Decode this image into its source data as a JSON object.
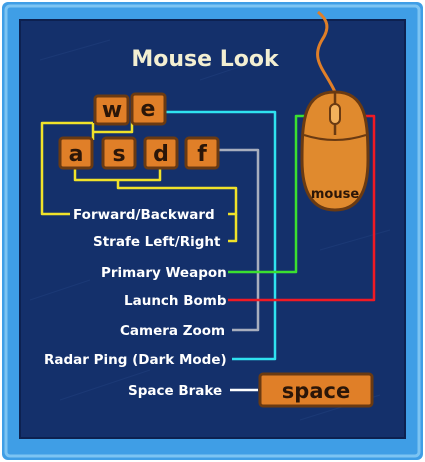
{
  "title": "Mouse Look",
  "colors": {
    "frame": "#3f9ee6",
    "board": "#14306b",
    "key_fill": "#e07f28",
    "key_border": "#6a3a12",
    "key_text": "#2b1608",
    "yellow_line": "#f0e22a",
    "cyan_line": "#2fe2f0",
    "gray_line": "#a8aebe",
    "green_line": "#3be030",
    "red_line": "#f01a24",
    "white_line": "#ffffff"
  },
  "keys": {
    "w": "w",
    "e": "e",
    "a": "a",
    "s": "s",
    "d": "d",
    "f": "f"
  },
  "mouse": {
    "label": "mouse",
    "icon": "mouse-icon"
  },
  "space_key": {
    "label": "space"
  },
  "controls": [
    {
      "label": "Forward/Backward"
    },
    {
      "label": "Strafe Left/Right"
    },
    {
      "label": "Primary Weapon"
    },
    {
      "label": "Launch Bomb"
    },
    {
      "label": "Camera Zoom"
    },
    {
      "label": "Radar Ping (Dark Mode)"
    },
    {
      "label": "Space Brake"
    }
  ]
}
